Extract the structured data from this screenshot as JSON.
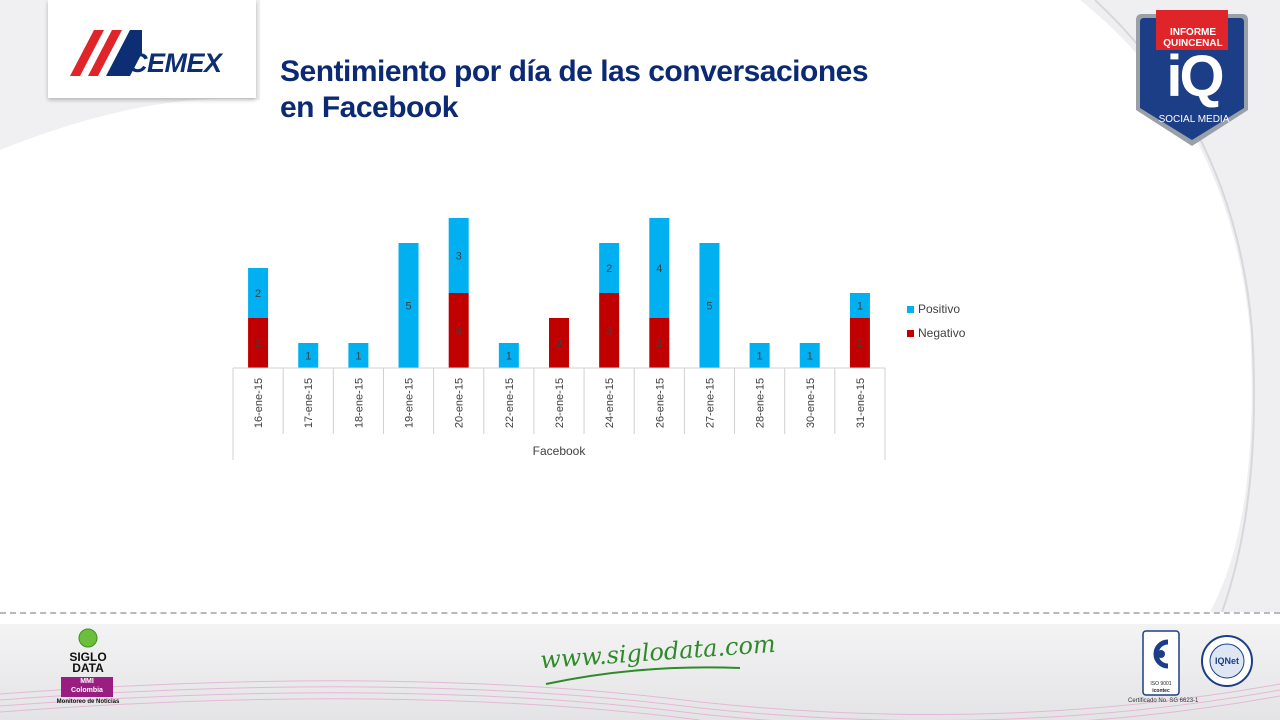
{
  "header": {
    "brand": "CEMEX",
    "title_line1": "Sentimiento por día de las conversaciones",
    "title_line2": "en Facebook"
  },
  "badge": {
    "top": "INFORME QUINCENAL",
    "main": "iQ",
    "bottom": "SOCIAL MEDIA"
  },
  "chart_data": {
    "type": "bar",
    "stacked": true,
    "categories": [
      "16-ene-15",
      "17-ene-15",
      "18-ene-15",
      "19-ene-15",
      "20-ene-15",
      "22-ene-15",
      "23-ene-15",
      "24-ene-15",
      "26-ene-15",
      "27-ene-15",
      "28-ene-15",
      "30-ene-15",
      "31-ene-15"
    ],
    "group_label": "Facebook",
    "series": [
      {
        "name": "Negativo",
        "color": "#c00000",
        "values": [
          2,
          0,
          0,
          0,
          3,
          0,
          2,
          3,
          2,
          0,
          0,
          0,
          2
        ]
      },
      {
        "name": "Positivo",
        "color": "#00b0f0",
        "values": [
          2,
          1,
          1,
          5,
          3,
          1,
          0,
          2,
          4,
          5,
          1,
          1,
          1
        ]
      }
    ],
    "legend": [
      "Positivo",
      "Negativo"
    ],
    "legend_position": "right",
    "ylim": [
      0,
      6
    ],
    "grid": false
  },
  "footer": {
    "siglo_line1": "SIGLO",
    "siglo_line2": "DATA",
    "mmi": "MMI",
    "colombia": "Colombia",
    "monitoreo": "Monitoreo de Noticias",
    "website": "www.siglodata.com",
    "iso": "ISO 9001",
    "icontec": "icontec",
    "certificado": "Certificado No. SG 6623-1",
    "iqnet": "IQNet"
  },
  "colors": {
    "title": "#0c2a74",
    "positivo": "#00b0f0",
    "negativo": "#c00000",
    "brand_red": "#e0252a",
    "badge_blue": "#1c3e86",
    "badge_red": "#e0252a"
  }
}
